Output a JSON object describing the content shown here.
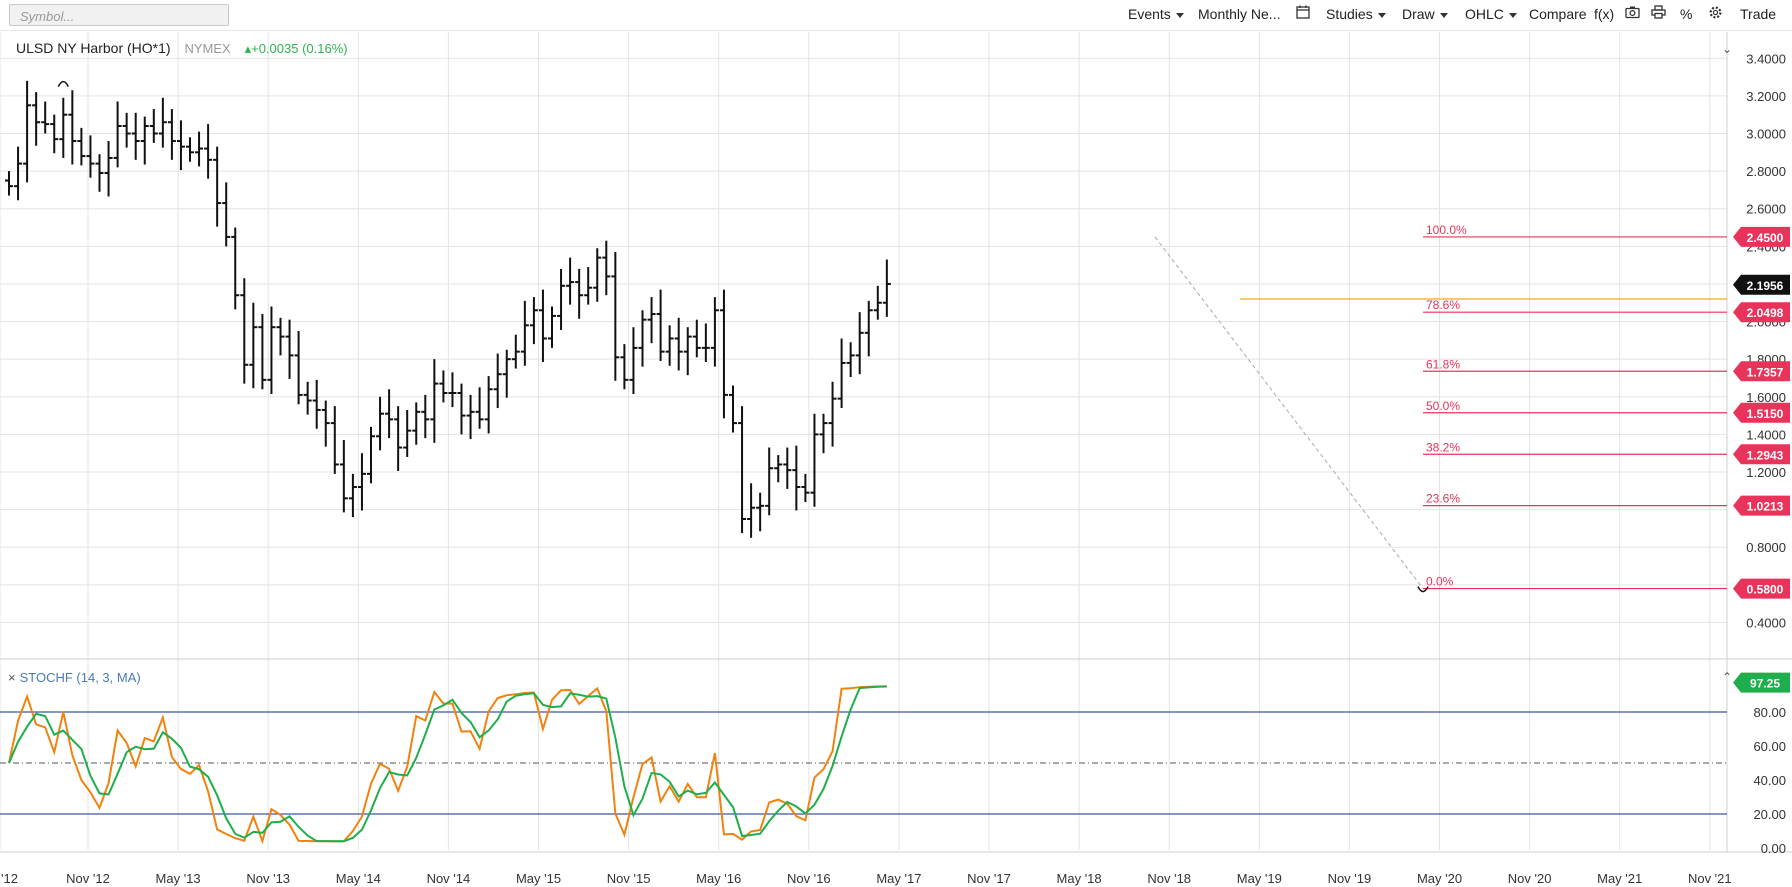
{
  "toolbar": {
    "symbol_placeholder": "Symbol...",
    "events": "Events",
    "monthly": "Monthly Ne...",
    "calendar_icon": "calendar-icon",
    "studies": "Studies",
    "draw": "Draw",
    "ohlc": "OHLC",
    "compare": "Compare",
    "fx": "f(x)",
    "camera_icon": "camera-icon",
    "print_icon": "print-icon",
    "percent": "%",
    "gear_icon": "gear-icon",
    "trade": "Trade"
  },
  "header": {
    "symbol": "ULSD NY Harbor (HO*1)",
    "exchange": "NYMEX",
    "change": "+0.0035 (0.16%)",
    "change_color": "#2eb34f"
  },
  "study": {
    "close": "×",
    "label": "STOCHF (14, 3, MA)"
  },
  "chart_data": {
    "type": "ohlc",
    "title": "ULSD NY Harbor (HO*1)",
    "interval": "monthly",
    "start": "2012-06",
    "y_range": [
      0.28,
      3.46
    ],
    "y_ticks": [
      "3.4000",
      "3.2000",
      "3.0000",
      "2.8000",
      "2.6000",
      "2.4000",
      "2.2000",
      "2.0000",
      "1.8000",
      "1.6000",
      "1.4000",
      "1.2000",
      "1.0000",
      "0.8000",
      "0.6000",
      "0.4000"
    ],
    "x_ticks": [
      "'12",
      "Nov '12",
      "May '13",
      "Nov '13",
      "May '14",
      "Nov '14",
      "May '15",
      "Nov '15",
      "May '16",
      "Nov '16",
      "May '17",
      "Nov '17",
      "May '18",
      "Nov '18",
      "May '19",
      "Nov '19",
      "May '20",
      "Nov '20",
      "May '21",
      "Nov '21"
    ],
    "closes": [
      2.72,
      2.84,
      3.15,
      3.06,
      3.05,
      2.97,
      3.1,
      2.96,
      2.88,
      2.84,
      2.79,
      2.87,
      3.04,
      3.0,
      2.96,
      3.04,
      3.0,
      3.06,
      2.96,
      2.93,
      2.9,
      2.92,
      2.86,
      2.63,
      2.45,
      2.14,
      1.77,
      1.97,
      1.69,
      1.97,
      1.92,
      1.82,
      1.61,
      1.58,
      1.53,
      1.46,
      1.24,
      1.06,
      1.12,
      1.19,
      1.39,
      1.51,
      1.48,
      1.33,
      1.42,
      1.52,
      1.48,
      1.67,
      1.62,
      1.62,
      1.5,
      1.52,
      1.48,
      1.64,
      1.72,
      1.8,
      1.84,
      1.98,
      2.06,
      1.91,
      2.03,
      2.19,
      2.21,
      2.14,
      2.18,
      2.34,
      2.24,
      1.81,
      1.69,
      1.86,
      2.01,
      2.04,
      1.84,
      1.91,
      1.84,
      1.92,
      1.86,
      1.86,
      2.06,
      1.61,
      1.46,
      0.95,
      1.01,
      1.02,
      1.22,
      1.24,
      1.21,
      1.12,
      1.09,
      1.4,
      1.46,
      1.59,
      1.78,
      1.82,
      1.94,
      2.06,
      2.1,
      2.2
    ],
    "current": "2.1956",
    "fibonacci": {
      "levels": [
        {
          "label": "100.0%",
          "price": "2.4500",
          "value": 2.45
        },
        {
          "label": "78.6%",
          "price": "2.0498",
          "value": 2.0498
        },
        {
          "label": "61.8%",
          "price": "1.7357",
          "value": 1.7357
        },
        {
          "label": "50.0%",
          "price": "1.5150",
          "value": 1.515
        },
        {
          "label": "38.2%",
          "price": "1.2943",
          "value": 1.2943
        },
        {
          "label": "23.6%",
          "price": "1.0213",
          "value": 1.0213
        },
        {
          "label": "0.0%",
          "price": "0.5800",
          "value": 0.58
        }
      ],
      "color": "#e8345a"
    },
    "resistance_line": 2.12,
    "resistance_color": "#f5a623",
    "stochastic": {
      "label": "STOCHF (14, 3, MA)",
      "value": "97.25",
      "y_ticks": [
        "80.00",
        "60.00",
        "40.00",
        "20.00",
        "0.00"
      ],
      "k_color": "#f0820f",
      "d_color": "#1fae4b"
    }
  },
  "colors": {
    "grid": "#e3e3e3",
    "bar": "#111111",
    "band": "#3b56a8",
    "fib": "#e8345a",
    "badge_current": "#111111",
    "stoch_badge": "#1fae4b"
  }
}
